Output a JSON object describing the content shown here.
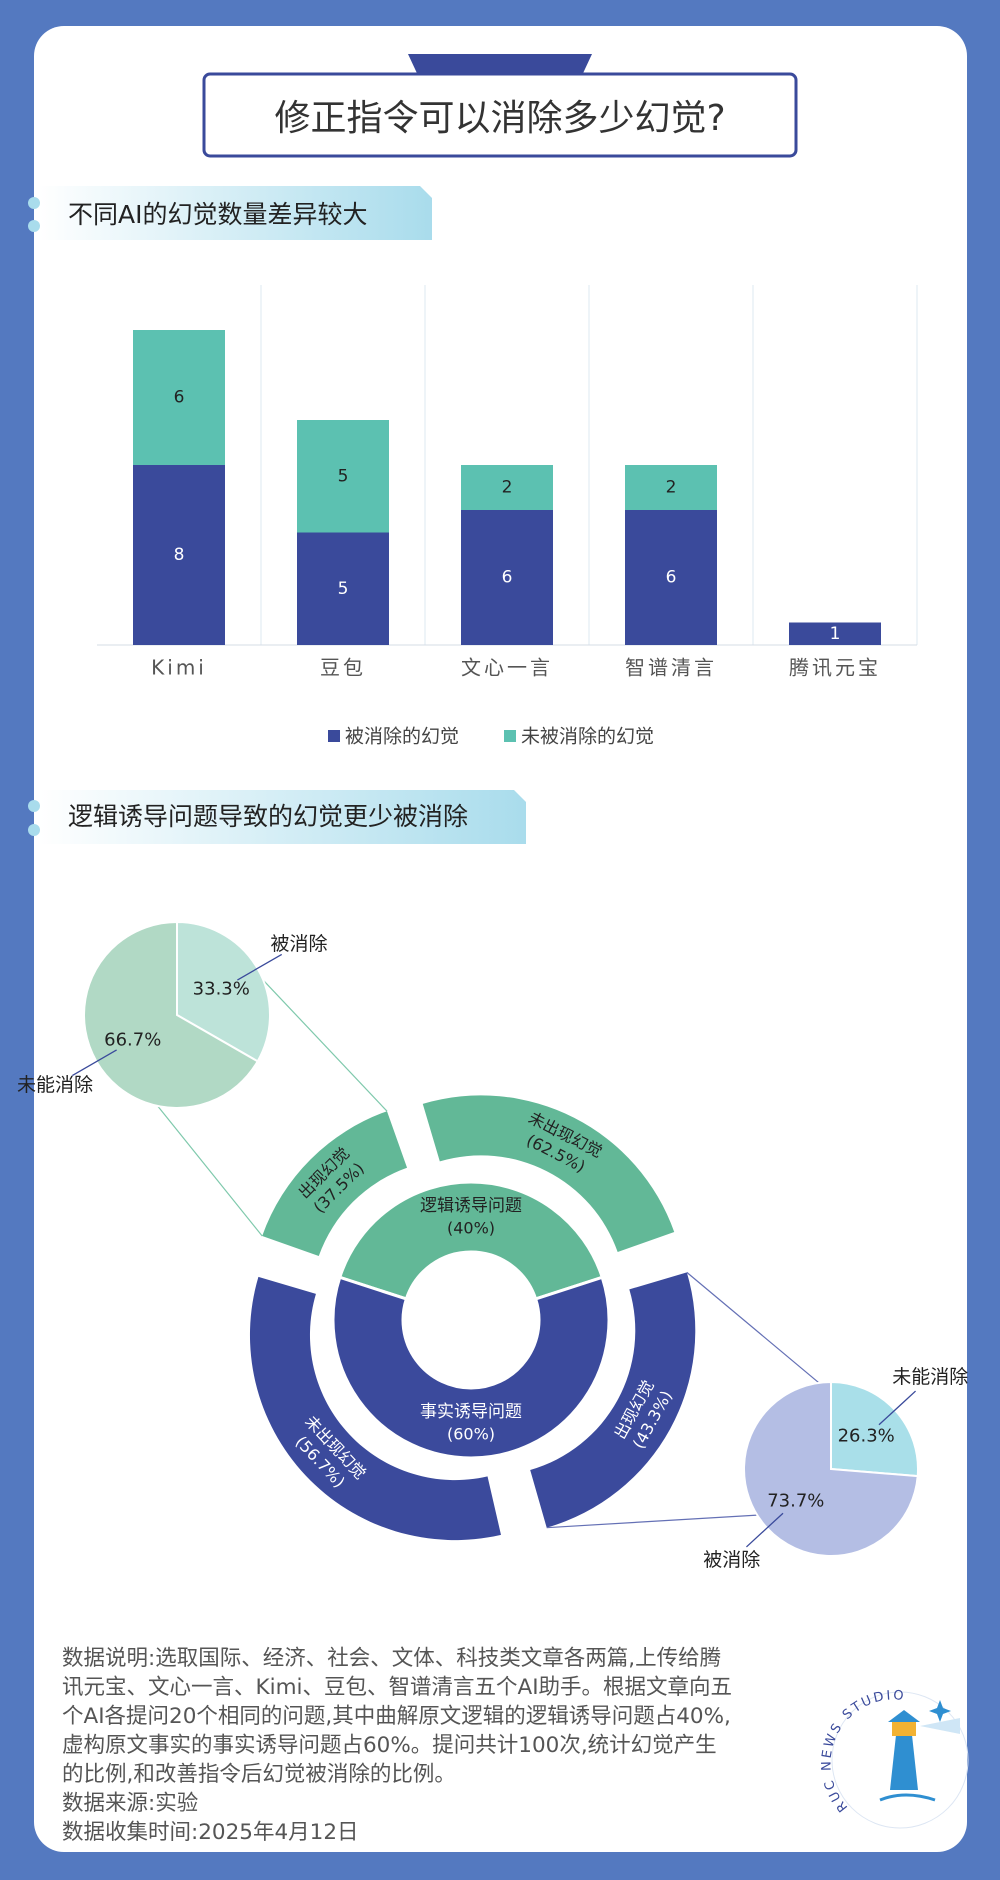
{
  "header": {
    "title": "修正指令可以消除多少幻觉?"
  },
  "sections": [
    {
      "title": "不同AI的幻觉数量差异较大"
    },
    {
      "title": "逻辑诱导问题导致的幻觉更少被消除"
    }
  ],
  "chart_data": [
    {
      "type": "bar",
      "stacked": true,
      "categories": [
        "Kimi",
        "豆包",
        "文心一言",
        "智谱清言",
        "腾讯元宝"
      ],
      "series": [
        {
          "name": "被消除的幻觉",
          "color": "#3a4a9b",
          "values": [
            8,
            5,
            6,
            6,
            1
          ]
        },
        {
          "name": "未被消除的幻觉",
          "color": "#5cc1b1",
          "values": [
            6,
            5,
            2,
            2,
            0
          ]
        }
      ],
      "legend": "bottom",
      "grid": true
    },
    {
      "type": "sunburst",
      "inner": [
        {
          "name": "逻辑诱导问题",
          "value": 40,
          "value_label": "(40%)",
          "color": "#62b897",
          "children": [
            {
              "name": "出现幻觉",
              "value": 37.5,
              "value_label": "(37.5%)",
              "breakdown": {
                "categories": [
                  "被消除",
                  "未能消除"
                ],
                "values": [
                  33.3,
                  66.7
                ],
                "value_labels": [
                  "33.3%",
                  "66.7%"
                ],
                "colors": [
                  "#bde3d9",
                  "#b1d9c5"
                ]
              }
            },
            {
              "name": "未出现幻觉",
              "value": 62.5,
              "value_label": "(62.5%)"
            }
          ]
        },
        {
          "name": "事实诱导问题",
          "value": 60,
          "value_label": "(60%)",
          "color": "#3b4a9c",
          "children": [
            {
              "name": "出现幻觉",
              "value": 43.3,
              "value_label": "(43.3%)",
              "breakdown": {
                "categories": [
                  "未能消除",
                  "被消除"
                ],
                "values": [
                  26.3,
                  73.7
                ],
                "value_labels": [
                  "26.3%",
                  "73.7%"
                ],
                "colors": [
                  "#a9dfe9",
                  "#b4bee4"
                ]
              }
            },
            {
              "name": "未出现幻觉",
              "value": 56.7,
              "value_label": "(56.7%)"
            }
          ]
        }
      ]
    }
  ],
  "notes": {
    "description": "数据说明:选取国际、经济、社会、文体、科技类文章各两篇,上传给腾讯元宝、文心一言、Kimi、豆包、智谱清言五个AI助手。根据文章向五个AI各提问20个相同的问题,其中曲解原文逻辑的逻辑诱导问题占40%,虚构原文事实的事实诱导问题占60%。提问共计100次,统计幻觉产生的比例,和改善指令后幻觉被消除的比例。",
    "source": "数据来源:实验",
    "date": "数据收集时间:2025年4月12日"
  },
  "logo": "RUC NEWS STUDIO"
}
